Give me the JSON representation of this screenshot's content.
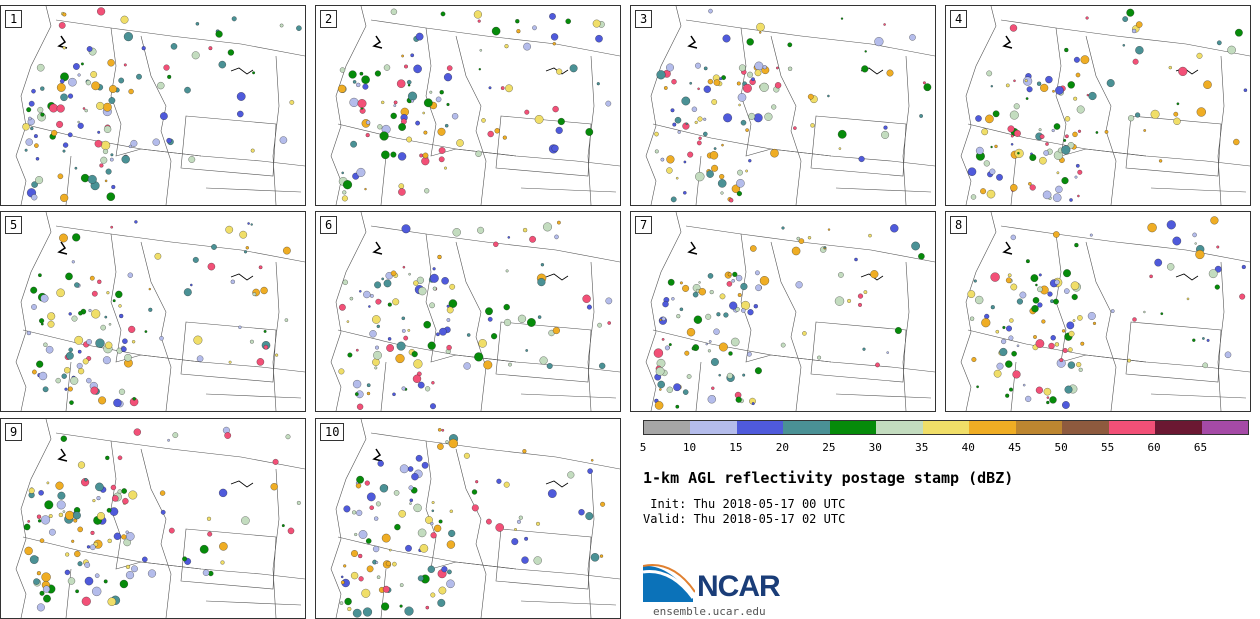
{
  "panels": [
    "1",
    "2",
    "3",
    "4",
    "5",
    "6",
    "7",
    "8",
    "9",
    "10"
  ],
  "colorbar": {
    "colors": [
      "#a6a6a6",
      "#b4bceb",
      "#4f5adb",
      "#4a9195",
      "#068b0a",
      "#c3dcbf",
      "#f0de68",
      "#efad24",
      "#bd8630",
      "#8e5a3e",
      "#f25077",
      "#6b1832",
      "#a54aa6"
    ],
    "ticks": [
      "5",
      "10",
      "15",
      "20",
      "25",
      "30",
      "35",
      "40",
      "45",
      "50",
      "55",
      "60",
      "65"
    ]
  },
  "title": "1-km AGL reflectivity postage stamp (dBZ)",
  "init": " Init: Thu 2018-05-17 00 UTC",
  "valid": "Valid: Thu 2018-05-17 02 UTC",
  "logo_text": "NCAR",
  "url": "ensemble.ucar.edu"
}
